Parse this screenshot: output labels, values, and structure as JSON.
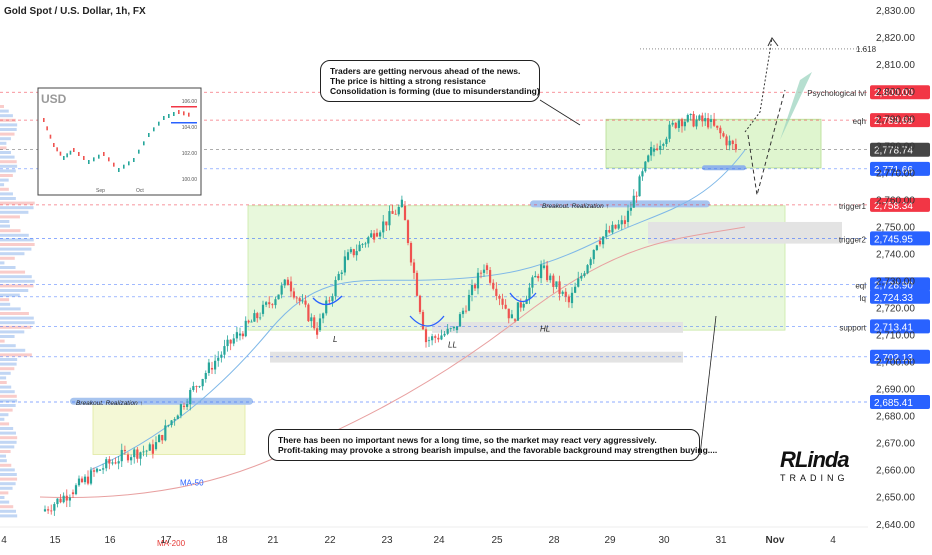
{
  "symbol_title": "Gold Spot / U.S. Dollar, 1h, FX",
  "notes": {
    "top": [
      "Traders are getting nervous ahead of the news.",
      "The price is hitting a strong resistance",
      "Consolidation is forming (due to misunderstanding)"
    ],
    "bottom": [
      "There has been no important news for a long time, so the market may react very aggressively.",
      "Profit-taking may provoke a strong bearish impulse, and the favorable background may strengthen buying...."
    ]
  },
  "brand": {
    "line1": "RLinda",
    "line2": "TRADING"
  },
  "inset": {
    "title": "USD",
    "ticks": [
      "106.00",
      "104.00",
      "102.00",
      "100.00"
    ],
    "xlabels": [
      "Sep",
      "Oct"
    ]
  },
  "colors": {
    "up": "#26a69a",
    "down": "#ef5350",
    "zone": "#d6f5c8",
    "blue_label": "#2962ff",
    "red_label": "#f23645",
    "gray_label": "#454545"
  },
  "chart_data": {
    "type": "candlestick",
    "title": "Gold Spot / U.S. Dollar, 1h, FX",
    "x_ticks": [
      "4",
      "15",
      "16",
      "17",
      "18",
      "21",
      "22",
      "23",
      "24",
      "25",
      "28",
      "29",
      "30",
      "31",
      "Nov",
      "4"
    ],
    "y_ticks": [
      2640,
      2650,
      2660,
      2670,
      2680,
      2690,
      2700,
      2710,
      2720,
      2730,
      2740,
      2750,
      2760,
      2770,
      2780,
      2790,
      2800,
      2810,
      2820,
      2830
    ],
    "y_tick_labels": [
      "2,640.00",
      "2,650.00",
      "2,660.00",
      "2,670.00",
      "2,680.00",
      "2,690.00",
      "2,700.00",
      "2,710.00",
      "2,720.00",
      "2,730.00",
      "2,740.00",
      "2,750.00",
      "2,760.00",
      "2,770.00",
      "2,780.00",
      "2,790.00",
      "2,800.00",
      "2,810.00",
      "2,820.00",
      "2,830.00"
    ],
    "ylim": [
      2634,
      2833
    ],
    "path": [
      [
        "15",
        2645
      ],
      [
        "15",
        2652
      ],
      [
        "16",
        2660
      ],
      [
        "16",
        2666
      ],
      [
        "17",
        2668
      ],
      [
        "17",
        2684
      ],
      [
        "18",
        2698
      ],
      [
        "18",
        2710
      ],
      [
        "21",
        2718
      ],
      [
        "21",
        2730
      ],
      [
        "22",
        2712
      ],
      [
        "22",
        2738
      ],
      [
        "23",
        2748
      ],
      [
        "23",
        2758
      ],
      [
        "24",
        2708
      ],
      [
        "24",
        2712
      ],
      [
        "25",
        2736
      ],
      [
        "25",
        2716
      ],
      [
        "28",
        2735
      ],
      [
        "28",
        2722
      ],
      [
        "29",
        2745
      ],
      [
        "29",
        2752
      ],
      [
        "30",
        2778
      ],
      [
        "30",
        2790
      ],
      [
        "31",
        2789
      ],
      [
        "31",
        2778.74
      ]
    ],
    "price_labels": [
      {
        "value": 2800.0,
        "text": "2,800.00",
        "style": "red",
        "name": "Psychological lvl"
      },
      {
        "value": 2789.69,
        "text": "2,789.69",
        "style": "red",
        "name": "eqh"
      },
      {
        "value": 2778.74,
        "text": "2,778.74",
        "style": "gray",
        "name": ""
      },
      {
        "value": 2771.66,
        "text": "2,771.66",
        "style": "blue",
        "name": ""
      },
      {
        "value": 2758.34,
        "text": "2,758.34",
        "style": "red",
        "name": "trigger1"
      },
      {
        "value": 2745.95,
        "text": "2,745.95",
        "style": "blue",
        "name": "trigger2"
      },
      {
        "value": 2728.9,
        "text": "2,728.90",
        "style": "blue",
        "name": "eql"
      },
      {
        "value": 2724.33,
        "text": "2,724.33",
        "style": "blue",
        "name": "lq"
      },
      {
        "value": 2713.41,
        "text": "2,713.41",
        "style": "blue",
        "name": "support"
      },
      {
        "value": 2702.13,
        "text": "2,702.13",
        "style": "blue",
        "name": ""
      },
      {
        "value": 2685.41,
        "text": "2,685.41",
        "style": "blue",
        "name": ""
      }
    ],
    "fib_label": "1.618",
    "fib_value": 2816,
    "annotations": [
      {
        "text": "Breakout. Realization ↑",
        "x": "30",
        "y": 2758
      },
      {
        "text": "Breakout. Realization ↑",
        "x": "16",
        "y": 2685
      },
      {
        "text": "L",
        "x": "22",
        "y": 2709
      },
      {
        "text": "LL",
        "x": "24",
        "y": 2707
      },
      {
        "text": "HL",
        "x": "25",
        "y": 2713
      },
      {
        "text": "MA-50",
        "x": "17",
        "y": 2656
      },
      {
        "text": "MA-200",
        "x": "16",
        "y": 2634
      }
    ]
  }
}
